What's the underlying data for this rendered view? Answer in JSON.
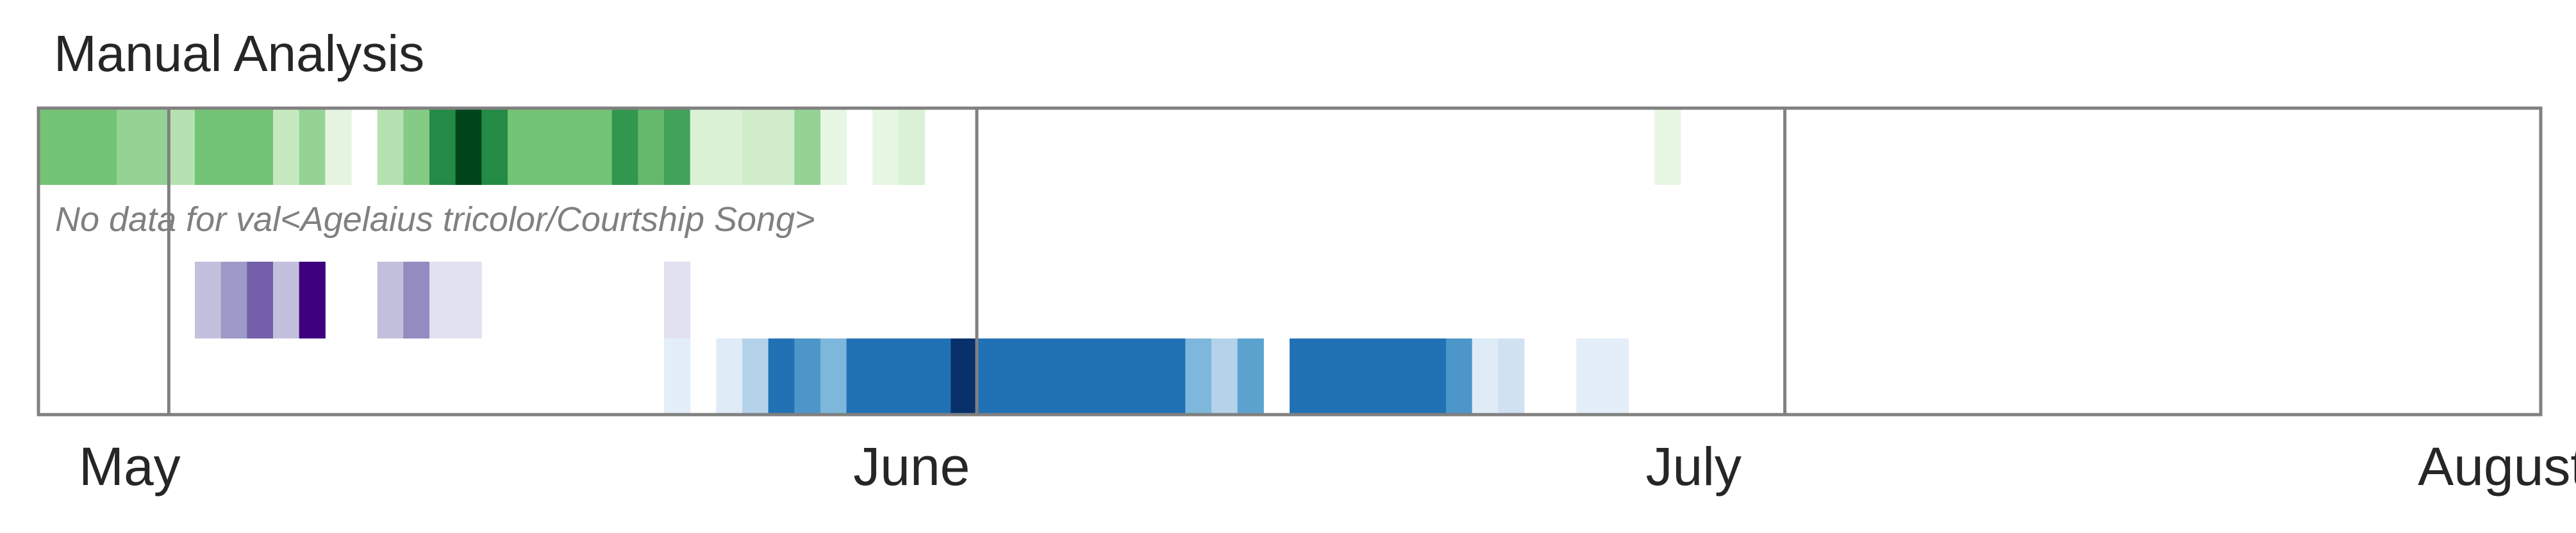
{
  "chart_data": {
    "type": "heatmap",
    "title": "Manual Analysis",
    "x_axis": {
      "type": "date",
      "range": [
        "2021-05-01",
        "2021-08-05"
      ],
      "tick_labels": [
        {
          "label": "May",
          "date": "2021-05-04"
        },
        {
          "label": "June",
          "date": "2021-06-03"
        },
        {
          "label": "July",
          "date": "2021-07-03"
        },
        {
          "label": "August",
          "date": "2021-08-03"
        }
      ],
      "month_boundaries": [
        "2021-05-06",
        "2021-06-06",
        "2021-07-07"
      ]
    },
    "grid": false,
    "legend": "none",
    "value_scale": [
      0,
      1
    ],
    "rows": [
      {
        "colormap": "greens",
        "colors": [
          "#f7fcf5",
          "#c7e9c0",
          "#74c476",
          "#238b45",
          "#00441b"
        ],
        "cells": [
          [
            "2021-05-01",
            0.5
          ],
          [
            "2021-05-02",
            0.5
          ],
          [
            "2021-05-03",
            0.5
          ],
          [
            "2021-05-04",
            0.4
          ],
          [
            "2021-05-05",
            0.4
          ],
          [
            "2021-05-06",
            0.3
          ],
          [
            "2021-05-07",
            0.5
          ],
          [
            "2021-05-08",
            0.5
          ],
          [
            "2021-05-09",
            0.5
          ],
          [
            "2021-05-10",
            0.25
          ],
          [
            "2021-05-11",
            0.4
          ],
          [
            "2021-05-12",
            0.1
          ],
          [
            "2021-05-14",
            0.3
          ],
          [
            "2021-05-15",
            0.45
          ],
          [
            "2021-05-16",
            0.75
          ],
          [
            "2021-05-17",
            1.0
          ],
          [
            "2021-05-18",
            0.75
          ],
          [
            "2021-05-19",
            0.5
          ],
          [
            "2021-05-20",
            0.5
          ],
          [
            "2021-05-21",
            0.5
          ],
          [
            "2021-05-22",
            0.5
          ],
          [
            "2021-05-23",
            0.7
          ],
          [
            "2021-05-24",
            0.55
          ],
          [
            "2021-05-25",
            0.65
          ],
          [
            "2021-05-26",
            0.15
          ],
          [
            "2021-05-27",
            0.15
          ],
          [
            "2021-05-28",
            0.2
          ],
          [
            "2021-05-29",
            0.2
          ],
          [
            "2021-05-30",
            0.4
          ],
          [
            "2021-05-31",
            0.08
          ],
          [
            "2021-06-02",
            0.08
          ],
          [
            "2021-06-03",
            0.15
          ],
          [
            "2021-07-02",
            0.08
          ]
        ]
      },
      {
        "name": "val<Agelaius tricolor/Courtship Song>",
        "message": "No data for val<Agelaius tricolor/Courtship Song>",
        "cells": []
      },
      {
        "colormap": "purples",
        "colors": [
          "#fcfbfd",
          "#dadaeb",
          "#9e9ac8",
          "#6a51a3",
          "#3f007d"
        ],
        "cells": [
          [
            "2021-05-07",
            0.35
          ],
          [
            "2021-05-08",
            0.5
          ],
          [
            "2021-05-09",
            0.7
          ],
          [
            "2021-05-10",
            0.35
          ],
          [
            "2021-05-11",
            1.0
          ],
          [
            "2021-05-14",
            0.35
          ],
          [
            "2021-05-15",
            0.55
          ],
          [
            "2021-05-16",
            0.2
          ],
          [
            "2021-05-17",
            0.2
          ],
          [
            "2021-05-25",
            0.2
          ]
        ]
      },
      {
        "colormap": "blues",
        "colors": [
          "#f7fbff",
          "#c6dbef",
          "#6baed6",
          "#2171b5",
          "#08306b"
        ],
        "cells": [
          [
            "2021-05-25",
            0.1
          ],
          [
            "2021-05-27",
            0.12
          ],
          [
            "2021-05-28",
            0.3
          ],
          [
            "2021-05-29",
            0.75
          ],
          [
            "2021-05-30",
            0.6
          ],
          [
            "2021-05-31",
            0.45
          ],
          [
            "2021-06-01",
            0.75
          ],
          [
            "2021-06-02",
            0.75
          ],
          [
            "2021-06-03",
            0.75
          ],
          [
            "2021-06-04",
            0.75
          ],
          [
            "2021-06-05",
            1.0
          ],
          [
            "2021-06-06",
            0.75
          ],
          [
            "2021-06-07",
            0.75
          ],
          [
            "2021-06-08",
            0.75
          ],
          [
            "2021-06-09",
            0.75
          ],
          [
            "2021-06-10",
            0.75
          ],
          [
            "2021-06-11",
            0.75
          ],
          [
            "2021-06-12",
            0.75
          ],
          [
            "2021-06-13",
            0.75
          ],
          [
            "2021-06-14",
            0.45
          ],
          [
            "2021-06-15",
            0.3
          ],
          [
            "2021-06-16",
            0.55
          ],
          [
            "2021-06-18",
            0.75
          ],
          [
            "2021-06-19",
            0.75
          ],
          [
            "2021-06-20",
            0.75
          ],
          [
            "2021-06-21",
            0.75
          ],
          [
            "2021-06-22",
            0.75
          ],
          [
            "2021-06-23",
            0.75
          ],
          [
            "2021-06-24",
            0.6
          ],
          [
            "2021-06-25",
            0.12
          ],
          [
            "2021-06-26",
            0.2
          ],
          [
            "2021-06-29",
            0.1
          ],
          [
            "2021-06-30",
            0.1
          ]
        ]
      }
    ]
  }
}
